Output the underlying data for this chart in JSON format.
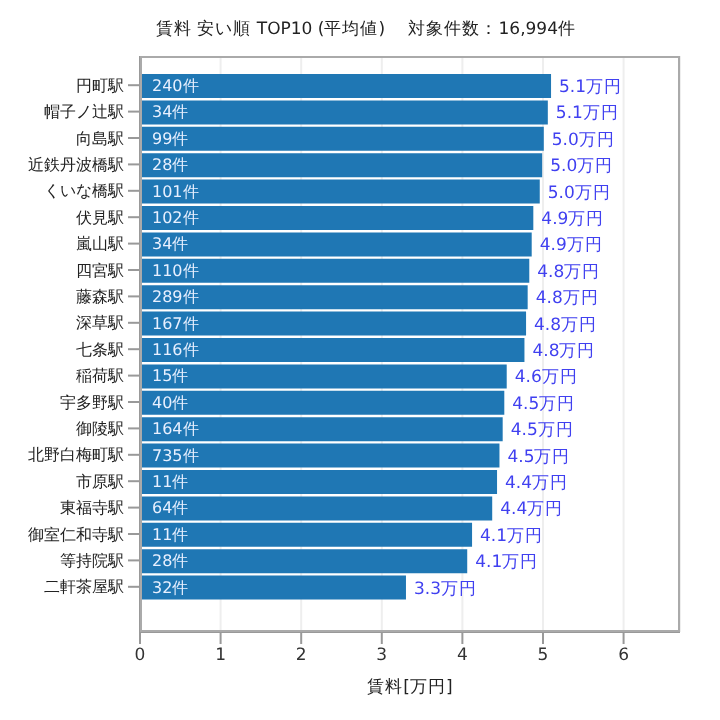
{
  "chart_data": {
    "type": "bar",
    "orientation": "horizontal",
    "title": "賃料 安い順 TOP10 (平均値)　 対象件数：16,994件",
    "xlabel": "賃料[万円]",
    "categories": [
      "円町駅",
      "帽子ノ辻駅",
      "向島駅",
      "近鉄丹波橋駅",
      "くいな橋駅",
      "伏見駅",
      "嵐山駅",
      "四宮駅",
      "藤森駅",
      "深草駅",
      "七条駅",
      "稲荷駅",
      "宇多野駅",
      "御陵駅",
      "北野白梅町駅",
      "市原駅",
      "東福寺駅",
      "御室仁和寺駅",
      "等持院駅",
      "二軒茶屋駅"
    ],
    "values": [
      5.1,
      5.06,
      5.01,
      4.99,
      4.96,
      4.88,
      4.86,
      4.83,
      4.81,
      4.79,
      4.77,
      4.55,
      4.52,
      4.5,
      4.46,
      4.43,
      4.37,
      4.12,
      4.06,
      3.3
    ],
    "value_labels": [
      "5.1万円",
      "5.1万円",
      "5.0万円",
      "5.0万円",
      "5.0万円",
      "4.9万円",
      "4.9万円",
      "4.8万円",
      "4.8万円",
      "4.8万円",
      "4.8万円",
      "4.6万円",
      "4.5万円",
      "4.5万円",
      "4.5万円",
      "4.4万円",
      "4.4万円",
      "4.1万円",
      "4.1万円",
      "3.3万円"
    ],
    "color": "#1f77b4",
    "annotations": [
      {
        "text": "240件",
        "y": "円町駅"
      },
      {
        "text": "34件",
        "y": "帽子ノ辻駅"
      },
      {
        "text": "99件",
        "y": "向島駅"
      },
      {
        "text": "28件",
        "y": "近鉄丹波橋駅"
      },
      {
        "text": "101件",
        "y": "くいな橋駅"
      },
      {
        "text": "102件",
        "y": "伏見駅"
      },
      {
        "text": "34件",
        "y": "嵐山駅"
      },
      {
        "text": "110件",
        "y": "四宮駅"
      },
      {
        "text": "289件",
        "y": "藤森駅"
      },
      {
        "text": "167件",
        "y": "深草駅"
      },
      {
        "text": "116件",
        "y": "七条駅"
      },
      {
        "text": "15件",
        "y": "稲荷駅"
      },
      {
        "text": "40件",
        "y": "宇多野駅"
      },
      {
        "text": "164件",
        "y": "御陵駅"
      },
      {
        "text": "735件",
        "y": "北野白梅町駅"
      },
      {
        "text": "11件",
        "y": "市原駅"
      },
      {
        "text": "64件",
        "y": "東福寺駅"
      },
      {
        "text": "11件",
        "y": "御室仁和寺駅"
      },
      {
        "text": "28件",
        "y": "等持院駅"
      },
      {
        "text": "32件",
        "y": "二軒茶屋駅"
      }
    ],
    "xlim": [
      0,
      6.7
    ],
    "xticks": [
      0,
      1,
      2,
      3,
      4,
      5,
      6
    ],
    "grid": "x"
  }
}
